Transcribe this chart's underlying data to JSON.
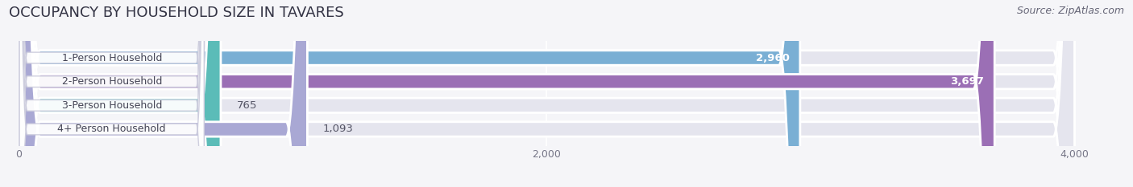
{
  "title": "OCCUPANCY BY HOUSEHOLD SIZE IN TAVARES",
  "source": "Source: ZipAtlas.com",
  "categories": [
    "1-Person Household",
    "2-Person Household",
    "3-Person Household",
    "4+ Person Household"
  ],
  "values": [
    2960,
    3697,
    765,
    1093
  ],
  "bar_colors": [
    "#7aafd4",
    "#9b6fb5",
    "#5bbcb8",
    "#a9a8d4"
  ],
  "value_label_colors": [
    "white",
    "white",
    "#555555",
    "#555555"
  ],
  "xlim": [
    -50,
    4200
  ],
  "xticks": [
    0,
    2000,
    4000
  ],
  "background_color": "#f5f5f8",
  "bar_background_color": "#e5e5ee",
  "title_fontsize": 13,
  "source_fontsize": 9,
  "bar_label_fontsize": 9.5,
  "category_fontsize": 9,
  "bar_height": 0.62,
  "figsize": [
    14.06,
    2.33
  ],
  "dpi": 100
}
